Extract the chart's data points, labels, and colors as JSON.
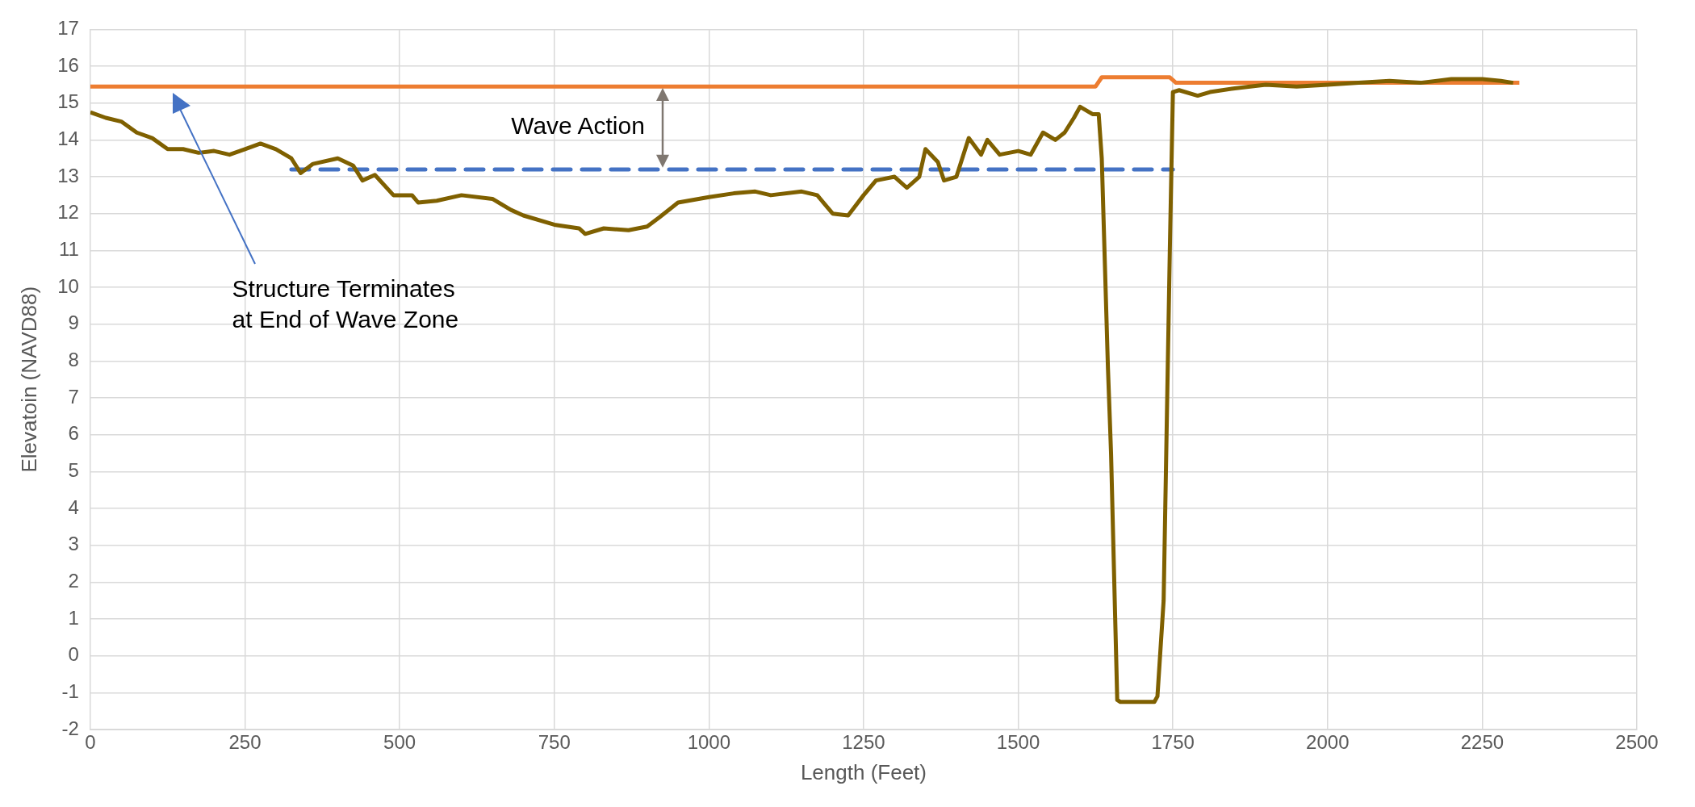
{
  "chart_data": {
    "type": "line",
    "xlabel": "Length (Feet)",
    "ylabel": "Elevatoin (NAVD88)",
    "xlim": [
      0,
      2500
    ],
    "xticks": [
      0,
      250,
      500,
      750,
      1000,
      1250,
      1500,
      1750,
      2000,
      2250,
      2500
    ],
    "ylim": [
      -2,
      17
    ],
    "yticks": [
      -2,
      -1,
      0,
      1,
      2,
      3,
      4,
      5,
      6,
      7,
      8,
      9,
      10,
      11,
      12,
      13,
      14,
      15,
      16,
      17
    ],
    "grid": true,
    "legend": false,
    "marker": "none",
    "series": [
      {
        "color": "#7f6000",
        "line_style": "solid",
        "x": [
          0,
          25,
          50,
          75,
          100,
          125,
          150,
          175,
          200,
          225,
          250,
          275,
          300,
          325,
          340,
          360,
          400,
          425,
          440,
          460,
          490,
          520,
          530,
          560,
          600,
          650,
          680,
          700,
          750,
          790,
          800,
          830,
          870,
          900,
          920,
          950,
          1000,
          1040,
          1075,
          1100,
          1150,
          1175,
          1200,
          1225,
          1250,
          1270,
          1300,
          1320,
          1340,
          1350,
          1370,
          1380,
          1400,
          1420,
          1440,
          1450,
          1470,
          1500,
          1520,
          1540,
          1560,
          1575,
          1590,
          1600,
          1620,
          1630,
          1635,
          1645,
          1650,
          1660,
          1665,
          1720,
          1725,
          1735,
          1745,
          1750,
          1760,
          1790,
          1810,
          1850,
          1900,
          1950,
          2000,
          2050,
          2100,
          2150,
          2200,
          2250,
          2280,
          2300
        ],
        "values": [
          14.75,
          14.6,
          14.5,
          14.2,
          14.05,
          13.75,
          13.75,
          13.65,
          13.7,
          13.6,
          13.75,
          13.9,
          13.75,
          13.5,
          13.1,
          13.35,
          13.5,
          13.3,
          12.9,
          13.05,
          12.5,
          12.5,
          12.3,
          12.35,
          12.5,
          12.4,
          12.1,
          11.95,
          11.7,
          11.6,
          11.45,
          11.6,
          11.55,
          11.65,
          11.9,
          12.3,
          12.45,
          12.55,
          12.6,
          12.5,
          12.6,
          12.5,
          12,
          11.95,
          12.5,
          12.9,
          13,
          12.7,
          13,
          13.75,
          13.4,
          12.9,
          13,
          14.05,
          13.6,
          14,
          13.6,
          13.7,
          13.6,
          14.2,
          14,
          14.2,
          14.6,
          14.9,
          14.7,
          14.7,
          13.5,
          7.8,
          5.5,
          -1.2,
          -1.25,
          -1.25,
          -1.1,
          1.5,
          11,
          15.3,
          15.35,
          15.2,
          15.3,
          15.4,
          15.5,
          15.45,
          15.5,
          15.55,
          15.6,
          15.55,
          15.65,
          15.65,
          15.6,
          15.55
        ]
      },
      {
        "color": "#ed7d31",
        "line_style": "solid",
        "x": [
          0,
          1625,
          1635,
          1745,
          1755,
          2310
        ],
        "values": [
          15.45,
          15.45,
          15.7,
          15.7,
          15.55,
          15.55
        ]
      },
      {
        "color": "#4472c4",
        "line_style": "dashed",
        "x": [
          325,
          1750
        ],
        "values": [
          13.2,
          13.2
        ]
      }
    ],
    "annotations": [
      "Wave Action",
      "Structure Terminates\nat End of Wave Zone"
    ]
  }
}
